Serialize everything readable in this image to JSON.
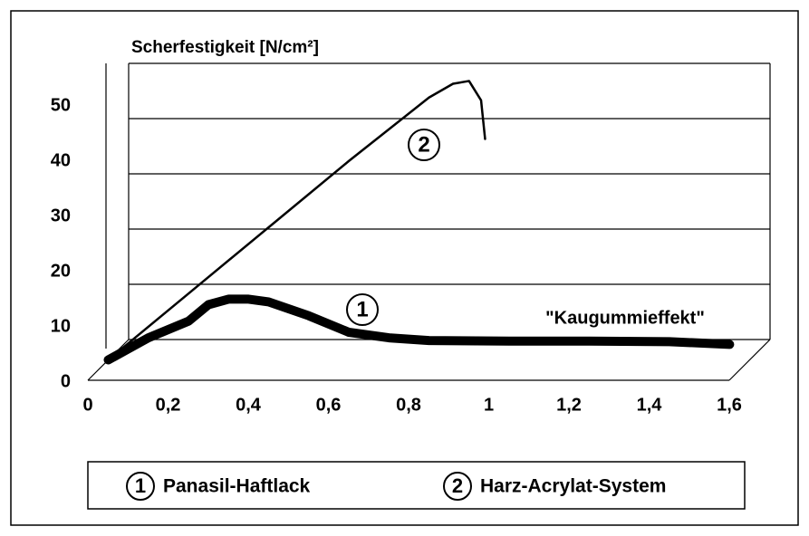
{
  "chart_data": {
    "type": "line",
    "y_label": "Scherfestigkeit [N/cm²]",
    "xlim": [
      0,
      1.6
    ],
    "xticks": [
      0,
      {
        "value": 0.2,
        "label": "0,2"
      },
      {
        "value": 0.4,
        "label": "0,4"
      },
      {
        "value": 0.6,
        "label": "0,6"
      },
      {
        "value": 0.8,
        "label": "0,8"
      },
      1,
      {
        "value": 1.2,
        "label": "1,2"
      },
      {
        "value": 1.4,
        "label": "1,4"
      },
      {
        "value": 1.6,
        "label": "1,6"
      }
    ],
    "ylim": [
      0,
      50
    ],
    "yticks": [
      0,
      10,
      20,
      30,
      40,
      50
    ],
    "grid": true,
    "annotations": [
      "\"Kaugummieffekt\""
    ],
    "series": [
      {
        "label": "1",
        "name": "Panasil-Haftlack",
        "color": "#000000",
        "x": [
          0,
          0.1,
          0.2,
          0.25,
          0.3,
          0.35,
          0.4,
          0.5,
          0.6,
          0.7,
          0.8,
          1.0,
          1.2,
          1.4,
          1.55
        ],
        "values": [
          0,
          4,
          7,
          10,
          11,
          11,
          10.5,
          8,
          5,
          4,
          3.5,
          3.4,
          3.4,
          3.3,
          2.8
        ]
      },
      {
        "label": "2",
        "name": "Harz-Acrylat-System",
        "color": "#000000",
        "x": [
          0,
          0.2,
          0.4,
          0.6,
          0.8,
          0.86,
          0.9,
          0.93,
          0.94
        ],
        "values": [
          0,
          12,
          24,
          36,
          47.5,
          50,
          50.5,
          47,
          40
        ]
      }
    ]
  }
}
